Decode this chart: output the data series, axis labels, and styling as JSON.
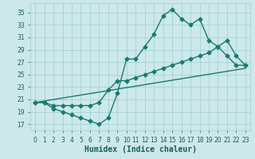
{
  "xlabel": "Humidex (Indice chaleur)",
  "bg_color": "#cce8ea",
  "line_color": "#1a7a6e",
  "grid_color": "#9ecdd1",
  "xlim": [
    -0.5,
    23.5
  ],
  "ylim": [
    16,
    36.5
  ],
  "xticks": [
    0,
    1,
    2,
    3,
    4,
    5,
    6,
    7,
    8,
    9,
    10,
    11,
    12,
    13,
    14,
    15,
    16,
    17,
    18,
    19,
    20,
    21,
    22,
    23
  ],
  "yticks": [
    17,
    19,
    21,
    23,
    25,
    27,
    29,
    31,
    33,
    35
  ],
  "line1_x": [
    0,
    1,
    2,
    3,
    4,
    5,
    6,
    7,
    8,
    9,
    10,
    11,
    12,
    13,
    14,
    15,
    16,
    17,
    18,
    19,
    20,
    21,
    22,
    23
  ],
  "line1_y": [
    20.5,
    20.5,
    19.5,
    19,
    18.5,
    18,
    17.5,
    17,
    18,
    22,
    27.5,
    27.5,
    29.5,
    31.5,
    34.5,
    35.5,
    34,
    33,
    34,
    30.5,
    29.5,
    28,
    26.5,
    26.5
  ],
  "line2_x": [
    0,
    1,
    2,
    3,
    4,
    5,
    6,
    7,
    8,
    9,
    10,
    11,
    12,
    13,
    14,
    15,
    16,
    17,
    18,
    19,
    20,
    21,
    22,
    23
  ],
  "line2_y": [
    20.5,
    20.5,
    20,
    20,
    20,
    20,
    20,
    20.5,
    22.5,
    24,
    24,
    24.5,
    25,
    25.5,
    26,
    26.5,
    27,
    27.5,
    28,
    28.5,
    29.5,
    30.5,
    28,
    26.5
  ],
  "line3_x": [
    0,
    23
  ],
  "line3_y": [
    20.5,
    26
  ],
  "marker_size": 2.5,
  "line_width": 1.0,
  "font_color": "#1a5c5a",
  "tick_fontsize": 5.5,
  "xlabel_fontsize": 7
}
